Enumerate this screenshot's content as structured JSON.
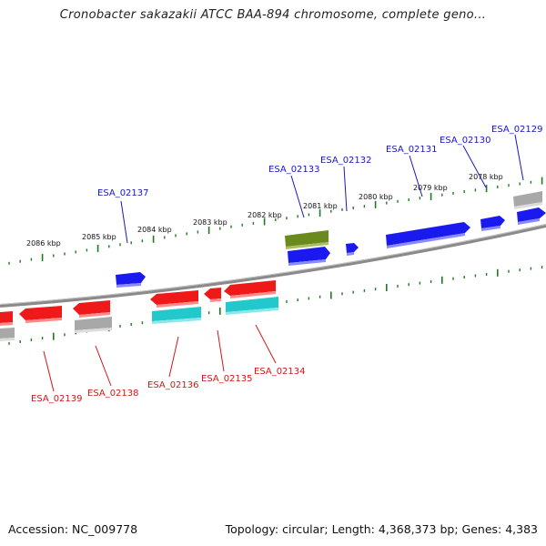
{
  "title": "Cronobacter sakazakii ATCC BAA-894 chromosome, complete geno...",
  "footer": {
    "accession": "Accession: NC_009778",
    "topology": "Topology: circular; Length: 4,368,373 bp; Genes: 4,383"
  },
  "colors": {
    "forward_gene": "#1a1aee",
    "reverse_gene": "#ee1a1a",
    "rna_olive": "#6b8a1e",
    "cds_cyan": "#22c8cc",
    "pseudo_gray": "#a8a8a8",
    "tick": "#1e7a1e",
    "backbone": "#808080",
    "fwd_label": "#1818c0",
    "rev_label": "#d01818"
  },
  "scale_ticks": [
    "2086 kbp",
    "2085 kbp",
    "2084 kbp",
    "2083 kbp",
    "2082 kbp",
    "2081 kbp",
    "2080 kbp",
    "2079 kbp",
    "2078 kbp"
  ],
  "forward_labels": [
    "ESA_02137",
    "ESA_02133",
    "ESA_02132",
    "ESA_02131",
    "ESA_02130",
    "ESA_02129"
  ],
  "reverse_labels": [
    "ESA_02139",
    "ESA_02138",
    "ESA_02136",
    "ESA_02135",
    "ESA_02134"
  ]
}
